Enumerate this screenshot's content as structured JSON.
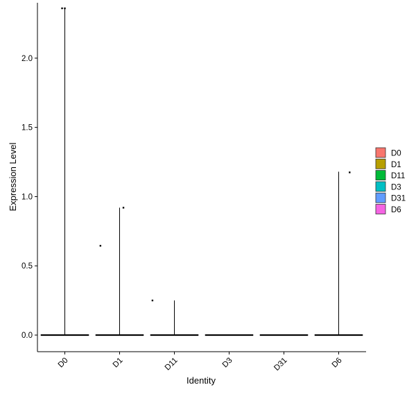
{
  "chart_data": {
    "type": "violin",
    "xlabel": "Identity",
    "ylabel": "Expression Level",
    "categories": [
      "D0",
      "D1",
      "D11",
      "D3",
      "D31",
      "D6"
    ],
    "ylim": [
      -0.12,
      2.4
    ],
    "yticks": [
      0.0,
      0.5,
      1.0,
      1.5,
      2.0
    ],
    "ytick_labels": [
      "0.0",
      "0.5",
      "1.0",
      "1.5",
      "2.0"
    ],
    "grid": false,
    "legend_position": "right",
    "series": [
      {
        "name": "D0",
        "color": "#F8766D",
        "max": 2.36,
        "points": [
          [
            -0.05,
            2.36
          ],
          [
            0.0,
            2.36
          ]
        ]
      },
      {
        "name": "D1",
        "color": "#B79F00",
        "max": 0.92,
        "points": [
          [
            -0.35,
            0.645
          ],
          [
            0.07,
            0.92
          ]
        ]
      },
      {
        "name": "D11",
        "color": "#00BA38",
        "max": 0.25,
        "points": [
          [
            -0.4,
            0.25
          ]
        ]
      },
      {
        "name": "D3",
        "color": "#00BFC4",
        "max": 0.0,
        "points": []
      },
      {
        "name": "D31",
        "color": "#619CFF",
        "max": 0.0,
        "points": []
      },
      {
        "name": "D6",
        "color": "#F564E3",
        "max": 1.18,
        "points": [
          [
            0.2,
            1.175
          ]
        ]
      }
    ]
  }
}
